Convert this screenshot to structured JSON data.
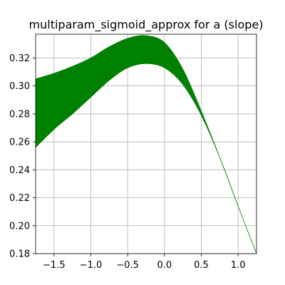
{
  "chart_data": {
    "type": "area",
    "title": "multiparam_sigmoid_approx for a (slope)",
    "xlabel": "",
    "ylabel": "",
    "xlim": [
      -1.75,
      1.25
    ],
    "ylim": [
      0.18,
      0.337
    ],
    "grid": true,
    "color": "#008000",
    "x_ticks": [
      -1.5,
      -1.0,
      -0.5,
      0.0,
      0.5,
      1.0
    ],
    "x_tick_labels": [
      "−1.5",
      "−1.0",
      "−0.5",
      "0.0",
      "0.5",
      "1.0"
    ],
    "y_ticks": [
      0.18,
      0.2,
      0.22,
      0.24,
      0.26,
      0.28,
      0.3,
      0.32
    ],
    "y_tick_labels": [
      "0.18",
      "0.20",
      "0.22",
      "0.24",
      "0.26",
      "0.28",
      "0.30",
      "0.32"
    ],
    "series": [
      {
        "x": [
          -1.75,
          -1.5,
          -1.25,
          -1.0,
          -0.75,
          -0.5,
          -0.25,
          0.0,
          0.25,
          0.5,
          0.75,
          1.0,
          1.25
        ],
        "upper": [
          0.305,
          0.309,
          0.314,
          0.32,
          0.328,
          0.334,
          0.336,
          0.331,
          0.312,
          0.282,
          0.249,
          0.214,
          0.18
        ],
        "lower": [
          0.256,
          0.269,
          0.28,
          0.292,
          0.304,
          0.313,
          0.316,
          0.313,
          0.301,
          0.279,
          0.249,
          0.214,
          0.18
        ]
      }
    ]
  }
}
